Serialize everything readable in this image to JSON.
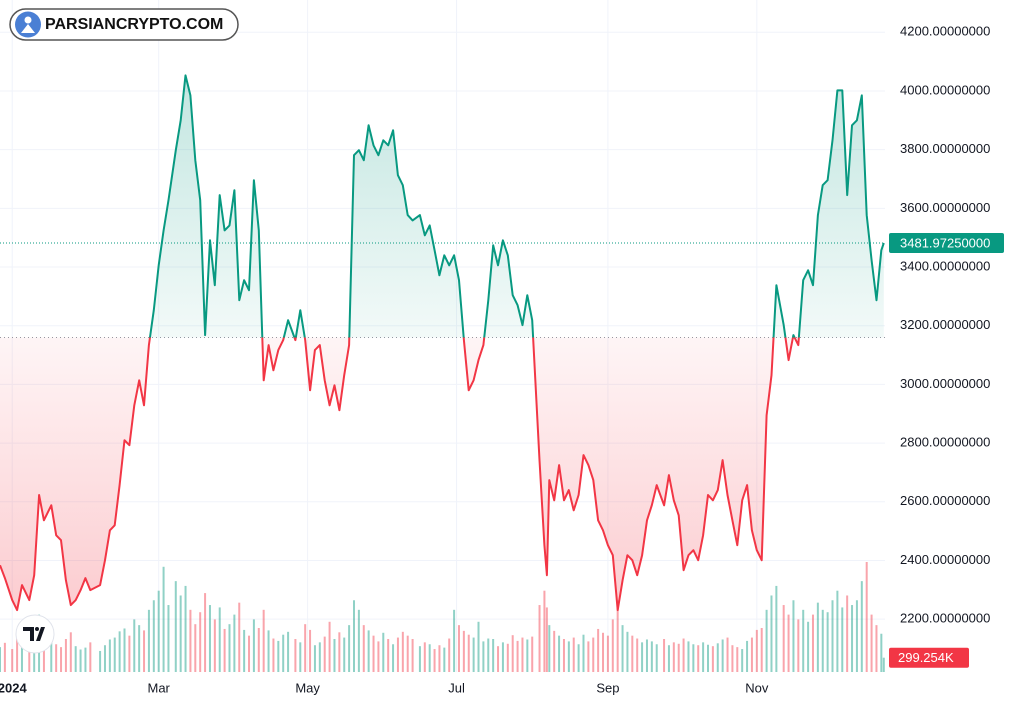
{
  "logo": "PARSIANCRYPTO.COM",
  "chart_data": {
    "type": "baseline",
    "baseline": 3160,
    "up_color": "#089981",
    "down_color": "#f23645",
    "grid": true,
    "xlim": [
      -5,
      357.5
    ],
    "ylim": [
      2020,
      4310
    ],
    "xticks": [
      {
        "value": 0,
        "label": "2024"
      },
      {
        "value": 60,
        "label": "Mar"
      },
      {
        "value": 121,
        "label": "May"
      },
      {
        "value": 182,
        "label": "Jul"
      },
      {
        "value": 244,
        "label": "Sep"
      },
      {
        "value": 305,
        "label": "Nov"
      }
    ],
    "yticks": [
      {
        "value": 2200,
        "label": "2200.00000000"
      },
      {
        "value": 2400,
        "label": "2400.00000000"
      },
      {
        "value": 2600,
        "label": "2600.00000000"
      },
      {
        "value": 2800,
        "label": "2800.00000000"
      },
      {
        "value": 3000,
        "label": "3000.00000000"
      },
      {
        "value": 3200,
        "label": "3200.00000000"
      },
      {
        "value": 3400,
        "label": "3400.00000000"
      },
      {
        "value": 3600,
        "label": "3600.00000000"
      },
      {
        "value": 3800,
        "label": "3800.00000000"
      },
      {
        "value": 4000,
        "label": "4000.00000000"
      },
      {
        "value": 4200,
        "label": "4200.00000000"
      }
    ],
    "x": [
      -5,
      -3,
      0,
      2,
      4,
      7,
      9,
      11,
      13,
      16,
      18,
      20,
      22,
      24,
      26,
      28,
      30,
      32,
      36,
      38,
      40,
      42,
      44,
      46,
      48,
      50,
      52,
      54,
      56,
      58,
      60,
      62,
      64,
      67,
      69,
      71,
      73,
      75,
      77,
      79,
      81,
      83,
      85,
      87,
      89,
      91,
      93,
      95,
      97,
      99,
      101,
      103,
      105,
      107,
      109,
      111,
      113,
      116,
      118,
      120,
      122,
      124,
      126,
      128,
      130,
      132,
      134,
      136,
      138,
      140,
      142,
      144,
      146,
      148,
      150,
      152,
      154,
      156,
      158,
      160,
      162,
      164,
      167,
      169,
      171,
      173,
      175,
      177,
      179,
      181,
      183,
      185,
      187,
      189,
      191,
      193,
      195,
      197,
      199,
      201,
      203,
      205,
      207,
      209,
      211,
      213,
      216,
      218,
      219,
      220,
      222,
      224,
      226,
      228,
      230,
      232,
      234,
      236,
      238,
      240,
      242,
      244,
      246,
      248,
      250,
      252,
      254,
      256,
      258,
      260,
      262,
      264,
      267,
      269,
      271,
      273,
      275,
      277,
      279,
      281,
      283,
      285,
      287,
      289,
      291,
      293,
      295,
      297,
      299,
      301,
      303,
      305,
      307,
      309,
      311,
      313,
      316,
      318,
      320,
      322,
      324,
      326,
      328,
      330,
      332,
      334,
      336,
      338,
      340,
      342,
      344,
      346,
      348,
      350,
      352,
      354,
      356,
      357
    ],
    "values": [
      2384,
      2340,
      2265,
      2231,
      2316,
      2265,
      2350,
      2623,
      2537,
      2588,
      2486,
      2469,
      2333,
      2248,
      2265,
      2299,
      2340,
      2299,
      2316,
      2401,
      2503,
      2520,
      2657,
      2810,
      2793,
      2929,
      3014,
      2929,
      3134,
      3253,
      3406,
      3525,
      3628,
      3798,
      3900,
      4053,
      3985,
      3764,
      3628,
      3168,
      3491,
      3338,
      3645,
      3525,
      3542,
      3662,
      3287,
      3355,
      3321,
      3696,
      3525,
      3014,
      3134,
      3048,
      3117,
      3151,
      3219,
      3151,
      3253,
      3151,
      2980,
      3117,
      3134,
      3014,
      2929,
      2997,
      2912,
      3031,
      3134,
      3781,
      3798,
      3764,
      3883,
      3815,
      3781,
      3832,
      3815,
      3866,
      3713,
      3679,
      3577,
      3559,
      3577,
      3508,
      3542,
      3457,
      3372,
      3440,
      3406,
      3440,
      3355,
      3151,
      2980,
      3014,
      3083,
      3134,
      3287,
      3474,
      3406,
      3491,
      3440,
      3304,
      3270,
      3202,
      3304,
      3219,
      2742,
      2452,
      2350,
      2674,
      2605,
      2725,
      2605,
      2640,
      2571,
      2623,
      2759,
      2725,
      2674,
      2537,
      2503,
      2452,
      2418,
      2231,
      2333,
      2418,
      2401,
      2350,
      2418,
      2537,
      2588,
      2657,
      2588,
      2691,
      2605,
      2554,
      2367,
      2418,
      2435,
      2401,
      2486,
      2623,
      2605,
      2640,
      2742,
      2623,
      2537,
      2452,
      2605,
      2657,
      2503,
      2435,
      2401,
      2895,
      3031,
      3338,
      3202,
      3083,
      3168,
      3134,
      3355,
      3389,
      3338,
      3577,
      3679,
      3696,
      3832,
      4002,
      4002,
      3645,
      3883,
      3900,
      3985,
      3577,
      3423,
      3287,
      3457,
      3482
    ],
    "last_price": {
      "value": 3481.9725,
      "label": "3481.97250000"
    },
    "volume": {
      "values": [
        520,
        610,
        480,
        700,
        560,
        450,
        890,
        1200,
        760,
        640,
        580,
        520,
        690,
        830,
        540,
        470,
        510,
        620,
        440,
        560,
        680,
        720,
        850,
        910,
        760,
        1100,
        980,
        870,
        1300,
        1500,
        1700,
        2200,
        1400,
        1900,
        1600,
        1800,
        1300,
        1000,
        1250,
        1650,
        1400,
        1100,
        1350,
        900,
        1000,
        1200,
        1450,
        880,
        760,
        1100,
        920,
        1300,
        870,
        700,
        650,
        780,
        840,
        690,
        620,
        1000,
        880,
        560,
        620,
        740,
        1050,
        690,
        830,
        720,
        980,
        1500,
        1300,
        980,
        870,
        760,
        640,
        820,
        690,
        580,
        720,
        840,
        760,
        690,
        540,
        620,
        580,
        480,
        560,
        510,
        700,
        1300,
        980,
        860,
        780,
        720,
        1050,
        640,
        700,
        690,
        540,
        620,
        590,
        770,
        650,
        720,
        680,
        740,
        1400,
        1700,
        1350,
        980,
        860,
        760,
        690,
        640,
        720,
        580,
        780,
        640,
        720,
        900,
        820,
        760,
        1100,
        1500,
        980,
        840,
        760,
        700,
        620,
        680,
        640,
        580,
        690,
        560,
        620,
        590,
        700,
        640,
        580,
        560,
        620,
        570,
        540,
        600,
        680,
        720,
        560,
        520,
        480,
        650,
        720,
        880,
        920,
        1300,
        1600,
        1800,
        1400,
        1200,
        1500,
        1100,
        1300,
        1050,
        1200,
        1450,
        1300,
        1250,
        1500,
        1700,
        1350,
        1600,
        1400,
        1500,
        1900,
        2300,
        1200,
        980,
        800,
        299.254
      ],
      "last_label": {
        "value": 299.254,
        "label": "299.254K"
      }
    }
  }
}
